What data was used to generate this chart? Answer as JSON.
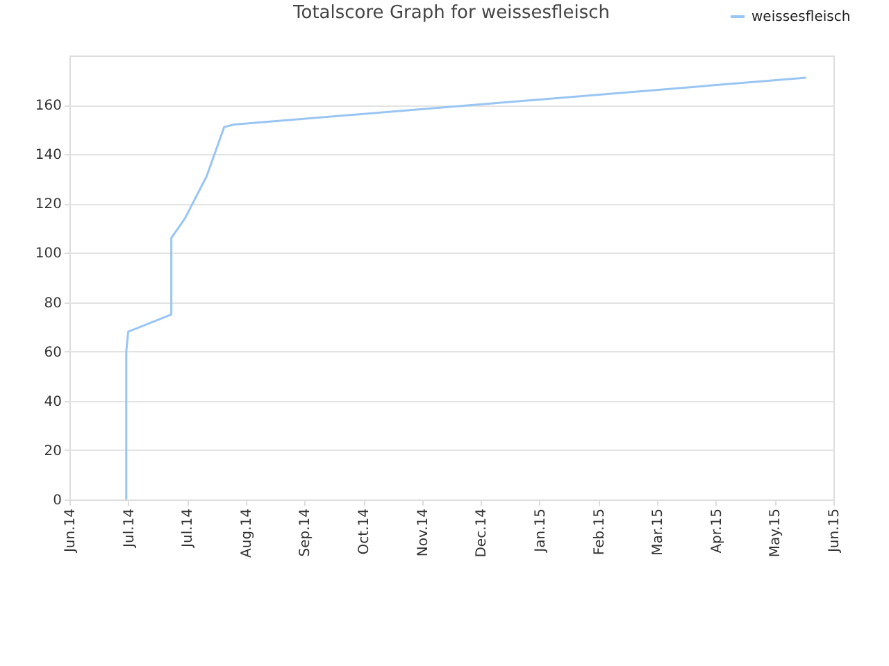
{
  "chart_data": {
    "type": "line",
    "title": "Totalscore Graph for weissesfleisch",
    "x": [
      "2014-06-30",
      "2014-06-30",
      "2014-07-01",
      "2014-07-23",
      "2014-07-23",
      "2014-07-30",
      "2014-08-10",
      "2014-08-19",
      "2014-08-24",
      "2015-06-12"
    ],
    "series": [
      {
        "name": "weissesfleisch",
        "color": "#99c5f3",
        "values": [
          0,
          60,
          68,
          75,
          106,
          114,
          131,
          151,
          152,
          171
        ]
      }
    ],
    "xlim": [
      "2014-06-01",
      "2015-06-26"
    ],
    "xticks": [
      {
        "value": "2014-06-01",
        "label": "Jun.14"
      },
      {
        "value": "2014-07-01",
        "label": "Jul.14"
      },
      {
        "value": "2014-07-31",
        "label": "Jul.14"
      },
      {
        "value": "2014-08-30",
        "label": "Aug.14"
      },
      {
        "value": "2014-09-29",
        "label": "Sep.14"
      },
      {
        "value": "2014-10-29",
        "label": "Oct.14"
      },
      {
        "value": "2014-11-28",
        "label": "Nov.14"
      },
      {
        "value": "2014-12-28",
        "label": "Dec.14"
      },
      {
        "value": "2015-01-27",
        "label": "Jan.15"
      },
      {
        "value": "2015-02-26",
        "label": "Feb.15"
      },
      {
        "value": "2015-03-28",
        "label": "Mar.15"
      },
      {
        "value": "2015-04-27",
        "label": "Apr.15"
      },
      {
        "value": "2015-05-27",
        "label": "May.15"
      },
      {
        "value": "2015-06-26",
        "label": "Jun.15"
      }
    ],
    "ylim": [
      0,
      180
    ],
    "yticks": [
      0,
      20,
      40,
      60,
      80,
      100,
      120,
      140,
      160
    ],
    "grid": "y",
    "legend": "top right",
    "marker": "none",
    "line_style": "solid"
  }
}
